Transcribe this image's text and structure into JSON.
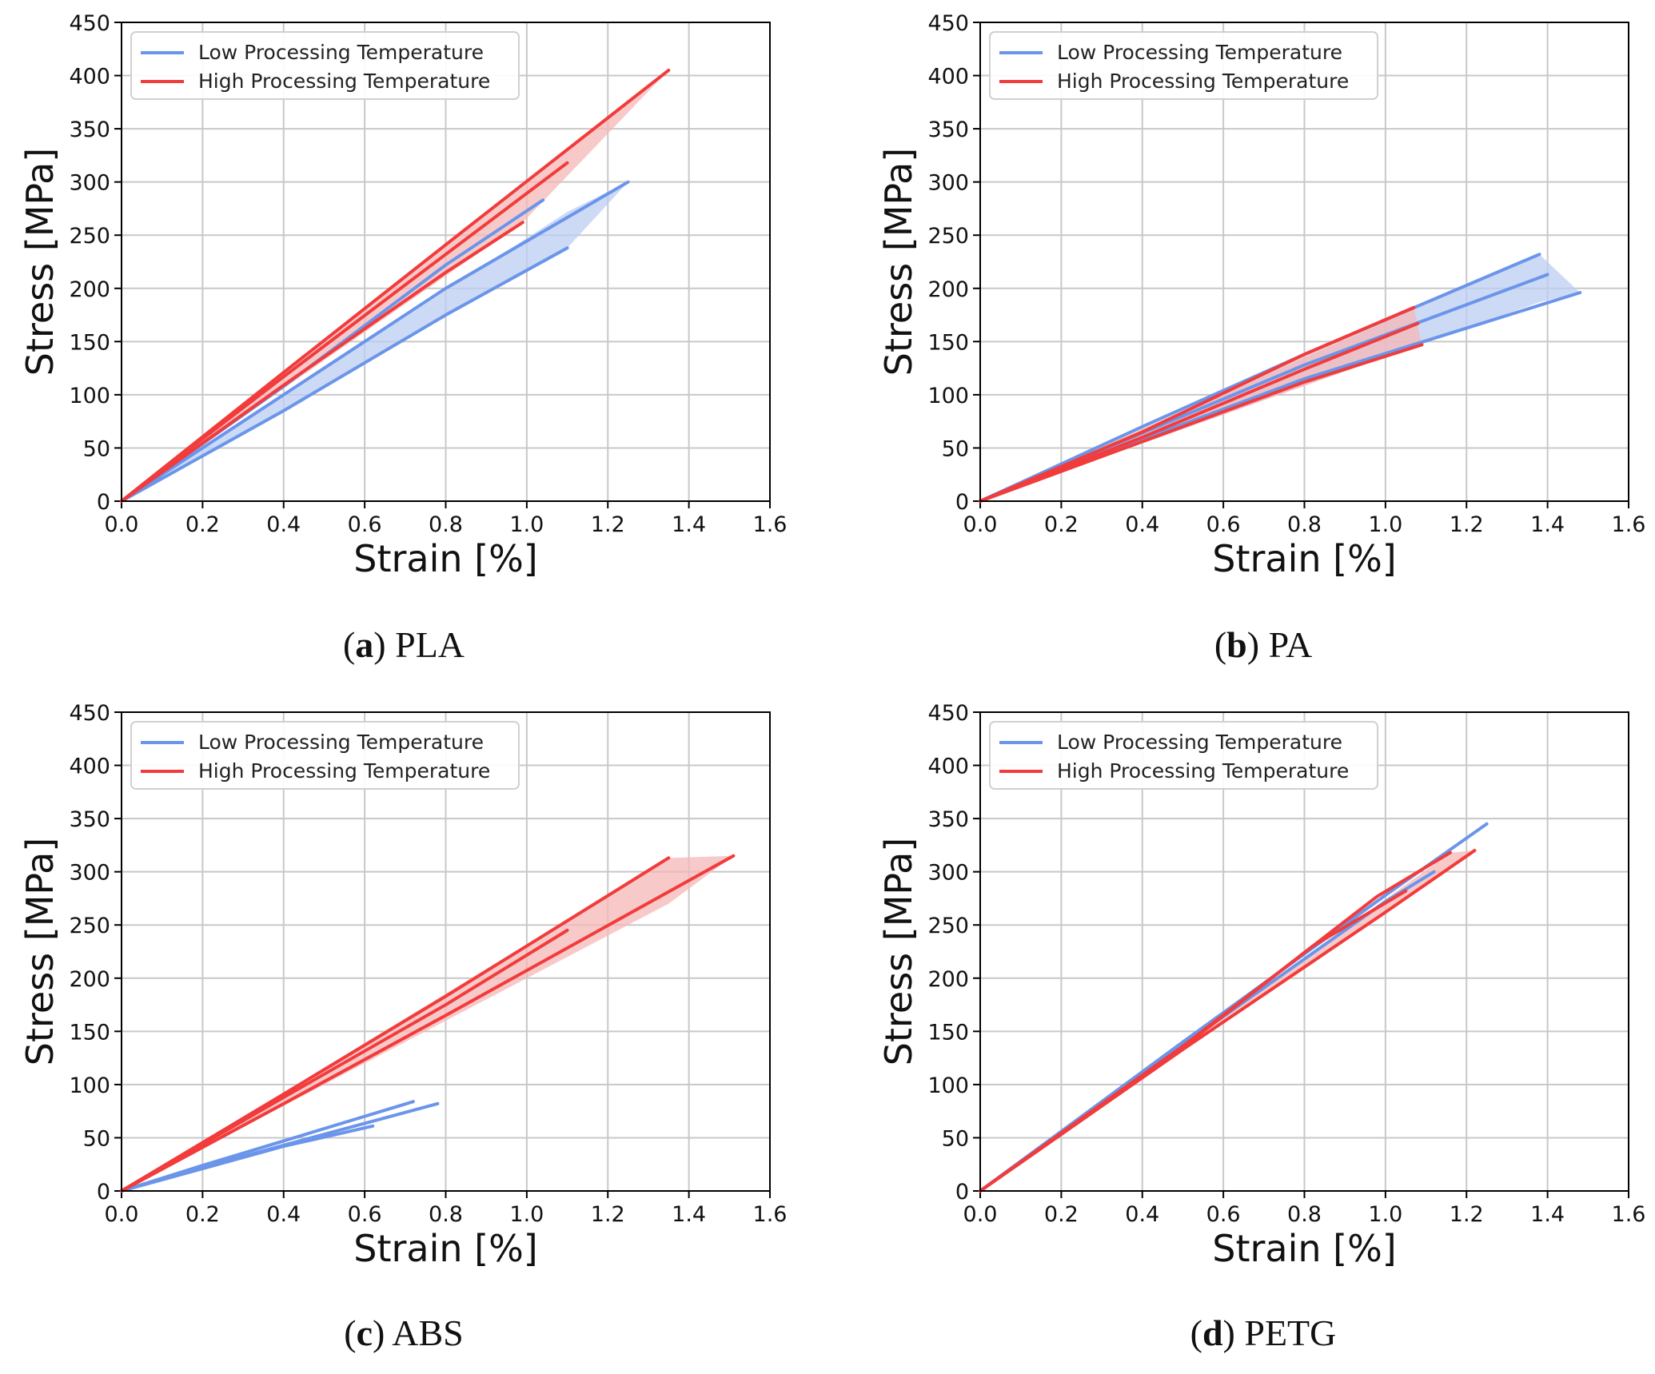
{
  "colors": {
    "low": "#6a95ea",
    "low_fill": "#bccdf3",
    "high": "#f23b3b",
    "high_fill": "#f5b7b7",
    "grid": "#c8c8c8",
    "axis": "#000000"
  },
  "legend": {
    "low": "Low Processing Temperature",
    "high": "High Processing Temperature"
  },
  "chart_data": [
    {
      "type": "line",
      "caption_letter": "a",
      "caption_text": " PLA",
      "xlabel": "Strain [%]",
      "ylabel": "Stress [MPa]",
      "xlim": [
        0,
        1.6
      ],
      "ylim": [
        0,
        450
      ],
      "xticks": [
        "0.0",
        "0.2",
        "0.4",
        "0.6",
        "0.8",
        "1.0",
        "1.2",
        "1.4",
        "1.6"
      ],
      "yticks": [
        "0",
        "50",
        "100",
        "150",
        "200",
        "250",
        "300",
        "350",
        "400",
        "450"
      ],
      "grid": true,
      "legend_position": "top-left",
      "series": [
        {
          "group": "low",
          "x": [
            0,
            0.4,
            0.8,
            1.25
          ],
          "y": [
            0,
            100,
            200,
            300
          ]
        },
        {
          "group": "low",
          "x": [
            0,
            0.4,
            0.8,
            1.04
          ],
          "y": [
            0,
            108,
            222,
            283
          ]
        },
        {
          "group": "low",
          "x": [
            0,
            0.4,
            0.8,
            1.1
          ],
          "y": [
            0,
            85,
            175,
            238
          ]
        },
        {
          "group": "high",
          "x": [
            0,
            0.4,
            0.8,
            1.35
          ],
          "y": [
            0,
            121,
            241,
            405
          ]
        },
        {
          "group": "high",
          "x": [
            0,
            0.4,
            0.8,
            0.99
          ],
          "y": [
            0,
            109,
            215,
            262
          ]
        },
        {
          "group": "high",
          "x": [
            0,
            0.4,
            0.8,
            1.1
          ],
          "y": [
            0,
            117,
            232,
            318
          ]
        }
      ],
      "bands": [
        {
          "group": "low",
          "x": [
            0,
            1.1,
            1.25
          ],
          "upper": [
            0,
            272,
            300
          ],
          "lower": [
            0,
            238,
            300
          ]
        },
        {
          "group": "high",
          "x": [
            0,
            0.99,
            1.35
          ],
          "upper": [
            0,
            298,
            405
          ],
          "lower": [
            0,
            262,
            405
          ]
        }
      ]
    },
    {
      "type": "line",
      "caption_letter": "b",
      "caption_text": " PA",
      "xlabel": "Strain [%]",
      "ylabel": "Stress [MPa]",
      "xlim": [
        0,
        1.6
      ],
      "ylim": [
        0,
        450
      ],
      "xticks": [
        "0.0",
        "0.2",
        "0.4",
        "0.6",
        "0.8",
        "1.0",
        "1.2",
        "1.4",
        "1.6"
      ],
      "yticks": [
        "0",
        "50",
        "100",
        "150",
        "200",
        "250",
        "300",
        "350",
        "400",
        "450"
      ],
      "grid": true,
      "legend_position": "top-left",
      "series": [
        {
          "group": "low",
          "x": [
            0,
            0.4,
            0.8,
            1.38
          ],
          "y": [
            0,
            70,
            138,
            232
          ]
        },
        {
          "group": "low",
          "x": [
            0,
            0.4,
            0.8,
            1.4
          ],
          "y": [
            0,
            64,
            128,
            213
          ]
        },
        {
          "group": "low",
          "x": [
            0,
            0.4,
            0.8,
            1.48
          ],
          "y": [
            0,
            58,
            115,
            196
          ]
        },
        {
          "group": "high",
          "x": [
            0,
            0.4,
            0.8,
            1.07
          ],
          "y": [
            0,
            65,
            138,
            182
          ]
        },
        {
          "group": "high",
          "x": [
            0,
            0.4,
            0.8,
            1.08
          ],
          "y": [
            0,
            60,
            124,
            167
          ]
        },
        {
          "group": "high",
          "x": [
            0,
            0.4,
            0.8,
            1.09
          ],
          "y": [
            0,
            56,
            112,
            147
          ]
        }
      ],
      "bands": [
        {
          "group": "low",
          "x": [
            0,
            1.38,
            1.48
          ],
          "upper": [
            0,
            232,
            196
          ],
          "lower": [
            0,
            187,
            196
          ]
        },
        {
          "group": "high",
          "x": [
            0,
            1.07,
            1.09
          ],
          "upper": [
            0,
            182,
            147
          ],
          "lower": [
            0,
            145,
            147
          ]
        }
      ]
    },
    {
      "type": "line",
      "caption_letter": "c",
      "caption_text": " ABS",
      "xlabel": "Strain [%]",
      "ylabel": "Stress [MPa]",
      "xlim": [
        0,
        1.6
      ],
      "ylim": [
        0,
        450
      ],
      "xticks": [
        "0.0",
        "0.2",
        "0.4",
        "0.6",
        "0.8",
        "1.0",
        "1.2",
        "1.4",
        "1.6"
      ],
      "yticks": [
        "0",
        "50",
        "100",
        "150",
        "200",
        "250",
        "300",
        "350",
        "400",
        "450"
      ],
      "grid": true,
      "legend_position": "top-left",
      "series": [
        {
          "group": "low",
          "x": [
            0,
            0.2,
            0.4,
            0.72
          ],
          "y": [
            0,
            24,
            47,
            84
          ]
        },
        {
          "group": "low",
          "x": [
            0,
            0.2,
            0.4,
            0.78
          ],
          "y": [
            0,
            22,
            43,
            82
          ]
        },
        {
          "group": "low",
          "x": [
            0,
            0.2,
            0.4,
            0.62
          ],
          "y": [
            0,
            21,
            42,
            61
          ]
        },
        {
          "group": "high",
          "x": [
            0,
            0.4,
            0.8,
            1.35
          ],
          "y": [
            0,
            91,
            183,
            313
          ]
        },
        {
          "group": "high",
          "x": [
            0,
            0.4,
            0.8,
            1.1
          ],
          "y": [
            0,
            88,
            175,
            245
          ]
        },
        {
          "group": "high",
          "x": [
            0,
            0.4,
            0.8,
            1.51
          ],
          "y": [
            0,
            82,
            165,
            315
          ]
        }
      ],
      "bands": [
        {
          "group": "high",
          "x": [
            0,
            1.35,
            1.51
          ],
          "upper": [
            0,
            313,
            315
          ],
          "lower": [
            0,
            270,
            315
          ]
        }
      ]
    },
    {
      "type": "line",
      "caption_letter": "d",
      "caption_text": " PETG",
      "xlabel": "Strain [%]",
      "ylabel": "Stress [MPa]",
      "xlim": [
        0,
        1.6
      ],
      "ylim": [
        0,
        450
      ],
      "xticks": [
        "0.0",
        "0.2",
        "0.4",
        "0.6",
        "0.8",
        "1.0",
        "1.2",
        "1.4",
        "1.6"
      ],
      "yticks": [
        "0",
        "50",
        "100",
        "150",
        "200",
        "250",
        "300",
        "350",
        "400",
        "450"
      ],
      "grid": true,
      "legend_position": "top-left",
      "series": [
        {
          "group": "low",
          "x": [
            0,
            0.5,
            1.0,
            1.25
          ],
          "y": [
            0,
            140,
            278,
            345
          ]
        },
        {
          "group": "low",
          "x": [
            0,
            0.5,
            1.0,
            1.12
          ],
          "y": [
            0,
            137,
            272,
            300
          ]
        },
        {
          "group": "high",
          "x": [
            0,
            0.5,
            0.98,
            1.16
          ],
          "y": [
            0,
            136,
            277,
            318
          ]
        },
        {
          "group": "high",
          "x": [
            0,
            0.5,
            1.0,
            1.22
          ],
          "y": [
            0,
            133,
            262,
            320
          ]
        },
        {
          "group": "high",
          "x": [
            0,
            0.5,
            0.82,
            1.05
          ],
          "y": [
            0,
            135,
            230,
            282
          ]
        }
      ],
      "bands": [
        {
          "group": "high",
          "x": [
            0,
            1.16,
            1.22
          ],
          "upper": [
            0,
            318,
            320
          ],
          "lower": [
            0,
            305,
            320
          ]
        }
      ]
    }
  ]
}
